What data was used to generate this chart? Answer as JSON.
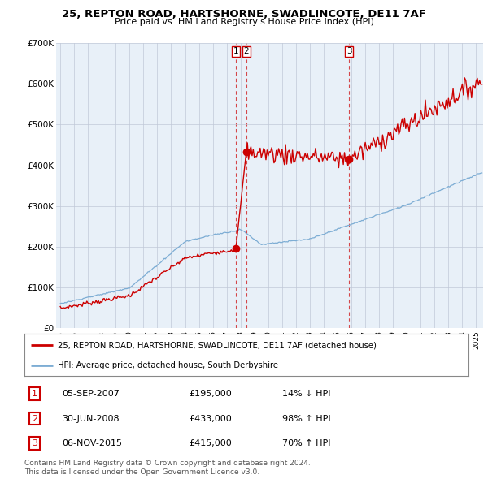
{
  "title": "25, REPTON ROAD, HARTSHORNE, SWADLINCOTE, DE11 7AF",
  "subtitle": "Price paid vs. HM Land Registry's House Price Index (HPI)",
  "ylim": [
    0,
    700000
  ],
  "yticks": [
    0,
    100000,
    200000,
    300000,
    400000,
    500000,
    600000,
    700000
  ],
  "ytick_labels": [
    "£0",
    "£100K",
    "£200K",
    "£300K",
    "£400K",
    "£500K",
    "£600K",
    "£700K"
  ],
  "sale_times": [
    2007.667,
    2008.417,
    2015.833
  ],
  "sale_prices": [
    195000,
    433000,
    415000
  ],
  "sale_labels": [
    "1",
    "2",
    "3"
  ],
  "line_color_property": "#cc0000",
  "line_color_hpi": "#7dadd4",
  "vline_color": "#cc0000",
  "legend_property": "25, REPTON ROAD, HARTSHORNE, SWADLINCOTE, DE11 7AF (detached house)",
  "legend_hpi": "HPI: Average price, detached house, South Derbyshire",
  "table_entries": [
    {
      "label": "1",
      "date": "05-SEP-2007",
      "price": "£195,000",
      "change": "14% ↓ HPI"
    },
    {
      "label": "2",
      "date": "30-JUN-2008",
      "price": "£433,000",
      "change": "98% ↑ HPI"
    },
    {
      "label": "3",
      "date": "06-NOV-2015",
      "price": "£415,000",
      "change": "70% ↑ HPI"
    }
  ],
  "footer": "Contains HM Land Registry data © Crown copyright and database right 2024.\nThis data is licensed under the Open Government Licence v3.0.",
  "bg_color": "#ffffff",
  "chart_bg_color": "#e8f0f8",
  "grid_color": "#c0c8d8",
  "xtick_years": [
    1995,
    1996,
    1997,
    1998,
    1999,
    2000,
    2001,
    2002,
    2003,
    2004,
    2005,
    2006,
    2007,
    2008,
    2009,
    2010,
    2011,
    2012,
    2013,
    2014,
    2015,
    2016,
    2017,
    2018,
    2019,
    2020,
    2021,
    2022,
    2023,
    2024,
    2025
  ]
}
